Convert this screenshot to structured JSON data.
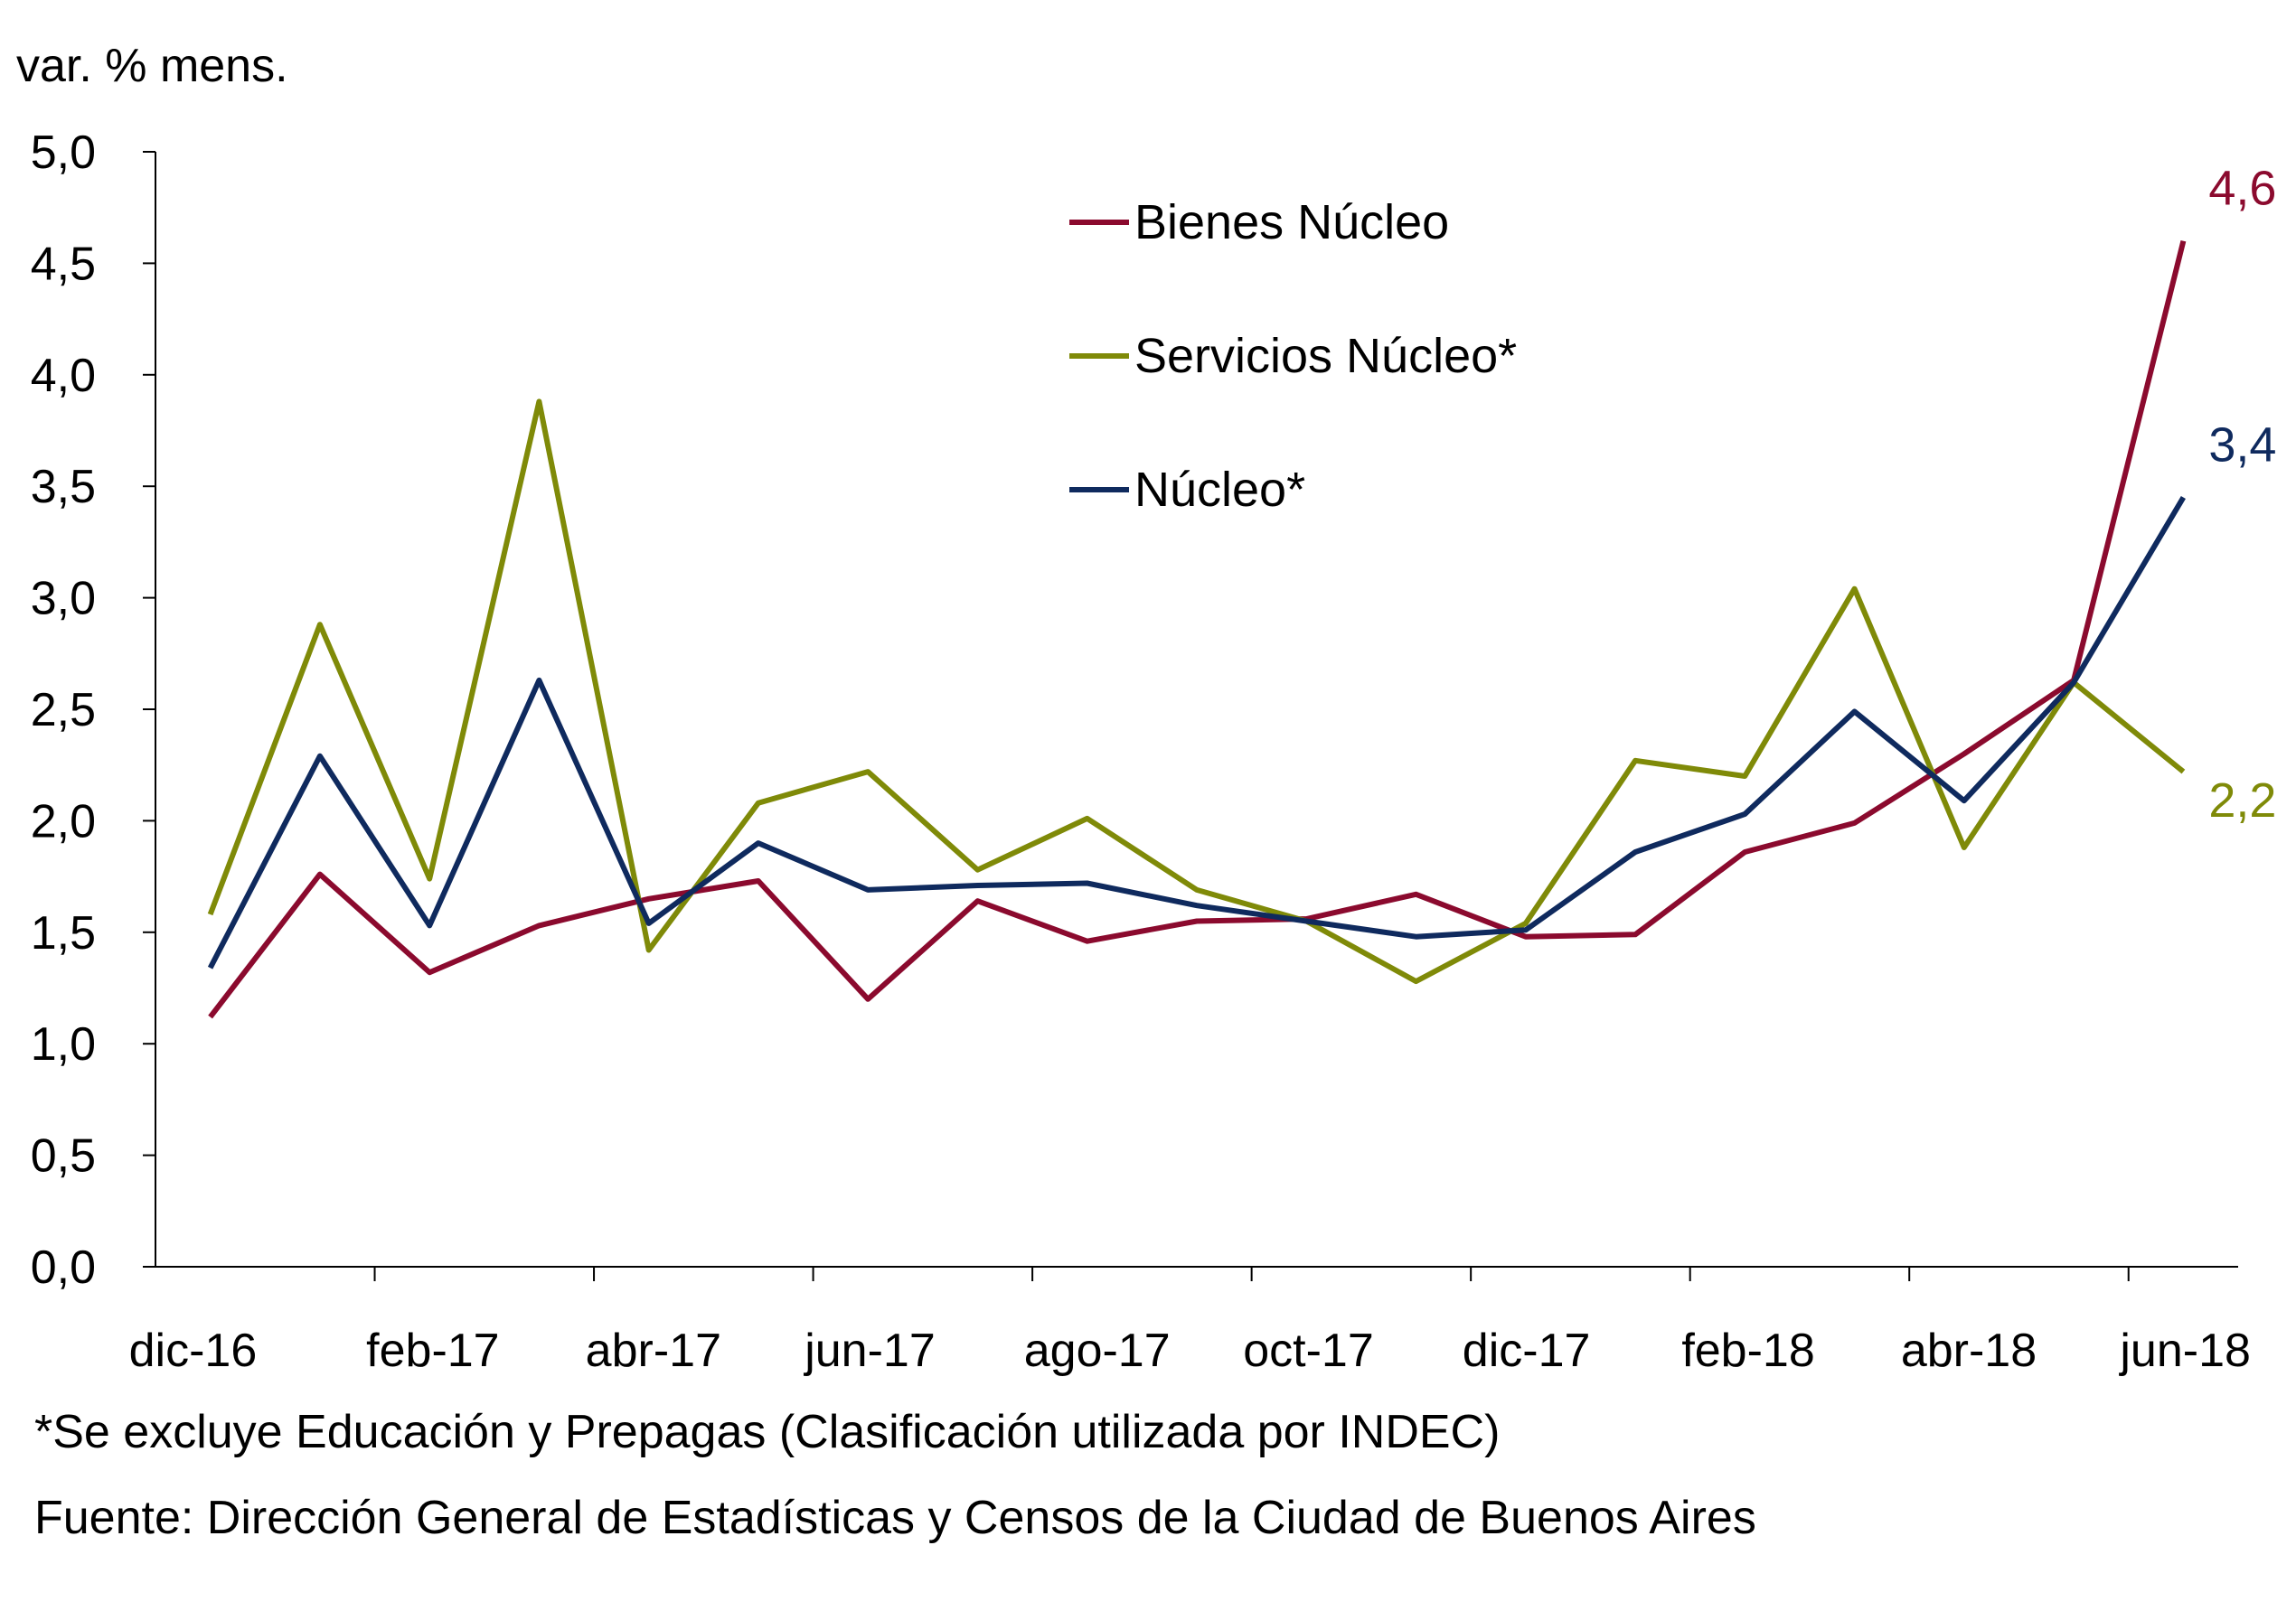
{
  "chart_data": {
    "type": "line",
    "ylabel": "var. % mens.",
    "ylim": [
      0,
      5
    ],
    "ytick_step": 0.5,
    "y_ticks": [
      "0,0",
      "0,5",
      "1,0",
      "1,5",
      "2,0",
      "2,5",
      "3,0",
      "3,5",
      "4,0",
      "4,5",
      "5,0"
    ],
    "x": [
      "dic-16",
      "ene-17",
      "feb-17",
      "mar-17",
      "abr-17",
      "may-17",
      "jun-17",
      "jul-17",
      "ago-17",
      "sep-17",
      "oct-17",
      "nov-17",
      "dic-17",
      "ene-18",
      "feb-18",
      "mar-18",
      "abr-18",
      "may-18",
      "jun-18"
    ],
    "x_tick_labels": [
      "dic-16",
      "feb-17",
      "abr-17",
      "jun-17",
      "ago-17",
      "oct-17",
      "dic-17",
      "feb-18",
      "abr-18",
      "jun-18"
    ],
    "series": [
      {
        "name": "Bienes Núcleo",
        "color": "#8B0A2E",
        "values": [
          1.12,
          1.76,
          1.32,
          1.53,
          1.65,
          1.73,
          1.2,
          1.64,
          1.46,
          1.55,
          1.56,
          1.67,
          1.48,
          1.49,
          1.86,
          1.99,
          2.3,
          2.63,
          4.6
        ],
        "end_label": "4,6"
      },
      {
        "name": "Servicios Núcleo*",
        "color": "#7F8A08",
        "values": [
          1.58,
          2.88,
          1.74,
          3.88,
          1.42,
          2.08,
          2.22,
          1.78,
          2.01,
          1.69,
          1.55,
          1.28,
          1.54,
          2.27,
          2.2,
          3.04,
          1.88,
          2.62,
          2.22
        ],
        "end_label": "2,2"
      },
      {
        "name": "Núcleo*",
        "color": "#0F2A5E",
        "values": [
          1.34,
          2.29,
          1.53,
          2.63,
          1.54,
          1.9,
          1.69,
          1.71,
          1.72,
          1.62,
          1.55,
          1.48,
          1.51,
          1.86,
          2.03,
          2.49,
          2.09,
          2.62,
          3.45
        ],
        "end_label": "3,4"
      }
    ]
  },
  "notes": {
    "exclusion": "*Se excluye Educación y Prepagas (Clasificación utilizada por INDEC)",
    "source": "Fuente: Dirección General de Estadísticas y Censos de la Ciudad de Buenos Aires"
  }
}
